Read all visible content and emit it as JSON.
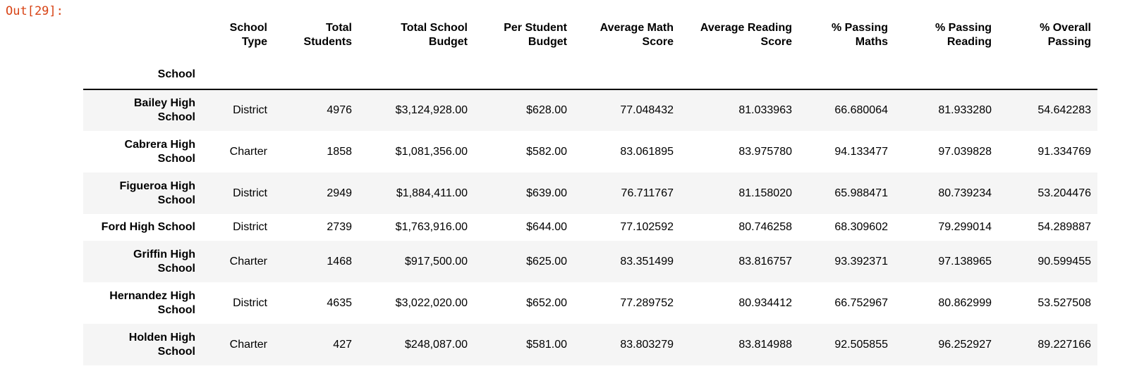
{
  "cell": {
    "prompt": "Out[29]:"
  },
  "table": {
    "index_name": "School",
    "columns": [
      [
        "School",
        "Type"
      ],
      [
        "Total",
        "Students"
      ],
      [
        "Total School",
        "Budget"
      ],
      [
        "Per Student",
        "Budget"
      ],
      [
        "Average Math",
        "Score"
      ],
      [
        "Average Reading",
        "Score"
      ],
      [
        "% Passing",
        "Maths"
      ],
      [
        "% Passing",
        "Reading"
      ],
      [
        "% Overall",
        "Passing"
      ]
    ],
    "rows": [
      {
        "school": [
          "Bailey High",
          "School"
        ],
        "cells": [
          "District",
          "4976",
          "$3,124,928.00",
          "$628.00",
          "77.048432",
          "81.033963",
          "66.680064",
          "81.933280",
          "54.642283"
        ]
      },
      {
        "school": [
          "Cabrera High",
          "School"
        ],
        "cells": [
          "Charter",
          "1858",
          "$1,081,356.00",
          "$582.00",
          "83.061895",
          "83.975780",
          "94.133477",
          "97.039828",
          "91.334769"
        ]
      },
      {
        "school": [
          "Figueroa High",
          "School"
        ],
        "cells": [
          "District",
          "2949",
          "$1,884,411.00",
          "$639.00",
          "76.711767",
          "81.158020",
          "65.988471",
          "80.739234",
          "53.204476"
        ]
      },
      {
        "school": [
          "Ford High School"
        ],
        "cells": [
          "District",
          "2739",
          "$1,763,916.00",
          "$644.00",
          "77.102592",
          "80.746258",
          "68.309602",
          "79.299014",
          "54.289887"
        ]
      },
      {
        "school": [
          "Griffin High",
          "School"
        ],
        "cells": [
          "Charter",
          "1468",
          "$917,500.00",
          "$625.00",
          "83.351499",
          "83.816757",
          "93.392371",
          "97.138965",
          "90.599455"
        ]
      },
      {
        "school": [
          "Hernandez High",
          "School"
        ],
        "cells": [
          "District",
          "4635",
          "$3,022,020.00",
          "$652.00",
          "77.289752",
          "80.934412",
          "66.752967",
          "80.862999",
          "53.527508"
        ]
      },
      {
        "school": [
          "Holden High",
          "School"
        ],
        "cells": [
          "Charter",
          "427",
          "$248,087.00",
          "$581.00",
          "83.803279",
          "83.814988",
          "92.505855",
          "96.252927",
          "89.227166"
        ]
      }
    ]
  }
}
